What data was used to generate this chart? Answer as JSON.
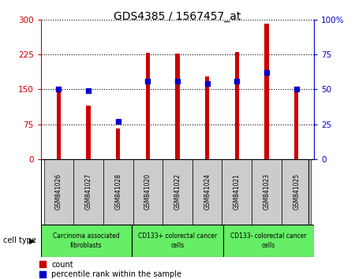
{
  "title": "GDS4385 / 1567457_at",
  "samples": [
    "GSM841026",
    "GSM841027",
    "GSM841028",
    "GSM841020",
    "GSM841022",
    "GSM841024",
    "GSM841021",
    "GSM841023",
    "GSM841025"
  ],
  "count_values": [
    150,
    115,
    65,
    228,
    227,
    177,
    230,
    291,
    150
  ],
  "percentile_values": [
    50,
    49,
    27,
    56,
    56,
    54,
    56,
    62,
    50
  ],
  "groups": [
    {
      "label": "Carcinoma associated\nfibroblasts",
      "start": 0,
      "end": 3
    },
    {
      "label": "CD133+ colorectal cancer\ncells",
      "start": 3,
      "end": 6
    },
    {
      "label": "CD133- colorectal cancer\ncells",
      "start": 6,
      "end": 9
    }
  ],
  "cell_type_label": "cell type",
  "bar_color": "#cc0000",
  "percentile_color": "#0000cc",
  "sample_box_color": "#cccccc",
  "group_box_color": "#66ee66",
  "left_ylim": [
    0,
    300
  ],
  "right_ylim": [
    0,
    100
  ],
  "left_yticks": [
    0,
    75,
    150,
    225,
    300
  ],
  "right_yticks": [
    0,
    25,
    50,
    75,
    100
  ],
  "left_tick_labels": [
    "0",
    "75",
    "150",
    "225",
    "300"
  ],
  "right_tick_labels": [
    "0",
    "25",
    "50",
    "75",
    "100%"
  ],
  "legend_count": "count",
  "legend_percentile": "percentile rank within the sample",
  "background_color": "#ffffff",
  "bar_width": 0.15
}
